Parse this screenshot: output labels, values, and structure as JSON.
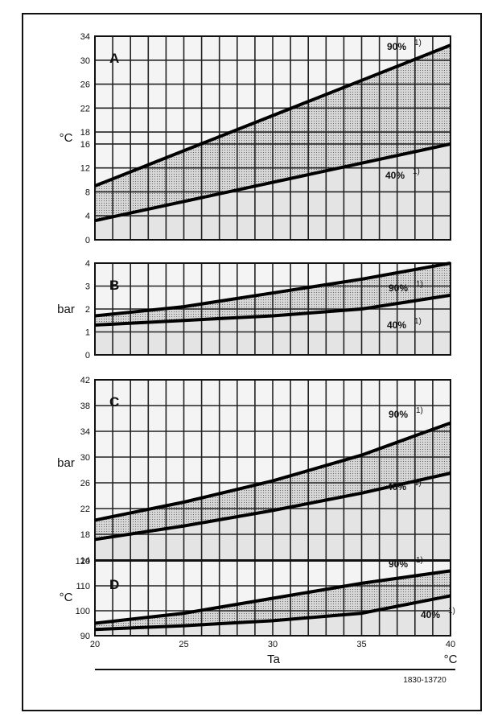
{
  "chart_data": [
    {
      "type": "line",
      "panel": "A",
      "ylabel": "°C",
      "ylim": [
        0,
        34
      ],
      "yticks": [
        0,
        4,
        8,
        12,
        16,
        18,
        22,
        26,
        30,
        34
      ],
      "xlim": [
        20,
        40
      ],
      "x": [
        20,
        40
      ],
      "series": [
        {
          "name": "90%",
          "values": [
            9,
            32.5
          ]
        },
        {
          "name": "40%",
          "values": [
            3.2,
            16
          ]
        }
      ],
      "labels": [
        "90%",
        "40%"
      ]
    },
    {
      "type": "line",
      "panel": "B",
      "ylabel": "bar",
      "ylim": [
        0,
        4
      ],
      "yticks": [
        0,
        1,
        2,
        3,
        4
      ],
      "xlim": [
        20,
        40
      ],
      "x": [
        20,
        25,
        30,
        35,
        40
      ],
      "series": [
        {
          "name": "90%",
          "values": [
            1.7,
            2.1,
            2.7,
            3.3,
            4.0
          ]
        },
        {
          "name": "40%",
          "values": [
            1.3,
            1.5,
            1.7,
            2.0,
            2.6
          ]
        }
      ],
      "labels": [
        "90%",
        "40%"
      ]
    },
    {
      "type": "line",
      "panel": "C",
      "ylabel": "bar",
      "ylim": [
        14,
        42
      ],
      "yticks": [
        14,
        18,
        22,
        26,
        30,
        34,
        38,
        42
      ],
      "xlim": [
        20,
        40
      ],
      "x": [
        20,
        25,
        30,
        35,
        40
      ],
      "series": [
        {
          "name": "90%",
          "values": [
            20.2,
            23,
            26.3,
            30.3,
            35.3
          ]
        },
        {
          "name": "40%",
          "values": [
            17.2,
            19.3,
            21.7,
            24.4,
            27.5
          ]
        }
      ],
      "labels": [
        "90%",
        "40%"
      ]
    },
    {
      "type": "line",
      "panel": "D",
      "ylabel": "°C",
      "ylim": [
        90,
        120
      ],
      "yticks": [
        90,
        100,
        110,
        120
      ],
      "xlim": [
        20,
        40
      ],
      "xticks": [
        20,
        25,
        30,
        35,
        40
      ],
      "x": [
        20,
        25,
        30,
        35,
        40
      ],
      "series": [
        {
          "name": "90%",
          "values": [
            95,
            99,
            105,
            111,
            116
          ]
        },
        {
          "name": "40%",
          "values": [
            92.5,
            94,
            96,
            99,
            106
          ]
        }
      ],
      "labels": [
        "90%",
        "40%"
      ]
    }
  ],
  "panel_letters": [
    "A",
    "B",
    "C",
    "D"
  ],
  "footnote_mark": "1)",
  "x_axis": {
    "name": "Ta",
    "unit": "°C"
  },
  "figure_code": "1830-13720"
}
